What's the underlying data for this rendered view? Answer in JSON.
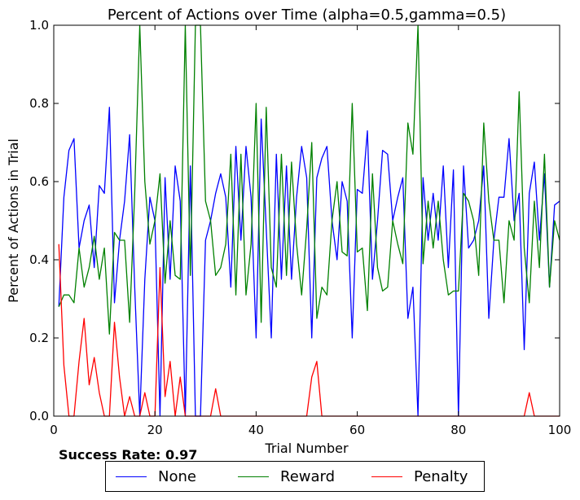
{
  "chart_data": {
    "type": "line",
    "title": "Percent of Actions over Time (alpha=0.5,gamma=0.5)",
    "xlabel": "Trial Number",
    "ylabel": "Percent of Actions in Trial",
    "xlim": [
      0,
      100
    ],
    "ylim": [
      0.0,
      1.0
    ],
    "xticks": [
      "0",
      "20",
      "40",
      "60",
      "80",
      "100"
    ],
    "yticks": [
      "0.0",
      "0.2",
      "0.4",
      "0.6",
      "0.8",
      "1.0"
    ],
    "grid": false,
    "legend_position": "below",
    "series": [
      {
        "name": "None",
        "color": "#0000ff",
        "x": [
          1,
          2,
          3,
          4,
          5,
          6,
          7,
          8,
          9,
          10,
          11,
          12,
          13,
          14,
          15,
          16,
          17,
          18,
          19,
          20,
          21,
          22,
          23,
          24,
          25,
          26,
          27,
          28,
          29,
          30,
          31,
          32,
          33,
          34,
          35,
          36,
          37,
          38,
          39,
          40,
          41,
          42,
          43,
          44,
          45,
          46,
          47,
          48,
          49,
          50,
          51,
          52,
          53,
          54,
          55,
          56,
          57,
          58,
          59,
          60,
          61,
          62,
          63,
          64,
          65,
          66,
          67,
          68,
          69,
          70,
          71,
          72,
          73,
          74,
          75,
          76,
          77,
          78,
          79,
          80,
          81,
          82,
          83,
          84,
          85,
          86,
          87,
          88,
          89,
          90,
          91,
          92,
          93,
          94,
          95,
          96,
          97,
          98,
          99,
          100
        ],
        "values": [
          0.28,
          0.56,
          0.68,
          0.71,
          0.43,
          0.5,
          0.54,
          0.38,
          0.59,
          0.57,
          0.79,
          0.29,
          0.45,
          0.55,
          0.72,
          0.33,
          0.0,
          0.35,
          0.56,
          0.5,
          0.0,
          0.61,
          0.35,
          0.64,
          0.55,
          0.0,
          0.64,
          0.0,
          0.0,
          0.45,
          0.5,
          0.57,
          0.62,
          0.56,
          0.33,
          0.69,
          0.45,
          0.69,
          0.56,
          0.2,
          0.76,
          0.48,
          0.2,
          0.67,
          0.35,
          0.64,
          0.35,
          0.56,
          0.69,
          0.61,
          0.2,
          0.61,
          0.66,
          0.69,
          0.5,
          0.4,
          0.6,
          0.55,
          0.2,
          0.58,
          0.57,
          0.73,
          0.35,
          0.5,
          0.68,
          0.67,
          0.5,
          0.56,
          0.61,
          0.25,
          0.33,
          0.0,
          0.61,
          0.45,
          0.57,
          0.45,
          0.64,
          0.38,
          0.63,
          0.0,
          0.64,
          0.43,
          0.45,
          0.5,
          0.64,
          0.25,
          0.45,
          0.56,
          0.56,
          0.71,
          0.5,
          0.57,
          0.17,
          0.57,
          0.65,
          0.45,
          0.62,
          0.33,
          0.54,
          0.55
        ]
      },
      {
        "name": "Reward",
        "color": "#008000",
        "x": [
          1,
          2,
          3,
          4,
          5,
          6,
          7,
          8,
          9,
          10,
          11,
          12,
          13,
          14,
          15,
          16,
          17,
          18,
          19,
          20,
          21,
          22,
          23,
          24,
          25,
          26,
          27,
          28,
          29,
          30,
          31,
          32,
          33,
          34,
          35,
          36,
          37,
          38,
          39,
          40,
          41,
          42,
          43,
          44,
          45,
          46,
          47,
          48,
          49,
          50,
          51,
          52,
          53,
          54,
          55,
          56,
          57,
          58,
          59,
          60,
          61,
          62,
          63,
          64,
          65,
          66,
          67,
          68,
          69,
          70,
          71,
          72,
          73,
          74,
          75,
          76,
          77,
          78,
          79,
          80,
          81,
          82,
          83,
          84,
          85,
          86,
          87,
          88,
          89,
          90,
          91,
          92,
          93,
          94,
          95,
          96,
          97,
          98,
          99,
          100
        ],
        "values": [
          0.28,
          0.31,
          0.31,
          0.29,
          0.43,
          0.33,
          0.38,
          0.46,
          0.35,
          0.43,
          0.21,
          0.47,
          0.45,
          0.45,
          0.24,
          0.57,
          1.0,
          0.6,
          0.44,
          0.5,
          0.62,
          0.34,
          0.5,
          0.36,
          0.35,
          1.0,
          0.36,
          1.0,
          1.0,
          0.55,
          0.5,
          0.36,
          0.38,
          0.44,
          0.67,
          0.31,
          0.67,
          0.31,
          0.44,
          0.8,
          0.24,
          0.79,
          0.38,
          0.33,
          0.67,
          0.36,
          0.65,
          0.44,
          0.31,
          0.48,
          0.7,
          0.25,
          0.33,
          0.31,
          0.5,
          0.6,
          0.42,
          0.41,
          0.8,
          0.42,
          0.43,
          0.27,
          0.62,
          0.38,
          0.32,
          0.33,
          0.5,
          0.44,
          0.39,
          0.75,
          0.67,
          1.0,
          0.39,
          0.55,
          0.43,
          0.55,
          0.4,
          0.31,
          0.32,
          0.32,
          0.57,
          0.55,
          0.5,
          0.36,
          0.75,
          0.55,
          0.45,
          0.45,
          0.29,
          0.5,
          0.45,
          0.83,
          0.43,
          0.29,
          0.55,
          0.38,
          0.67,
          0.33,
          0.5,
          0.45
        ]
      },
      {
        "name": "Penalty",
        "color": "#ff0000",
        "x": [
          1,
          2,
          3,
          4,
          5,
          6,
          7,
          8,
          9,
          10,
          11,
          12,
          13,
          14,
          15,
          16,
          17,
          18,
          19,
          20,
          21,
          22,
          23,
          24,
          25,
          26,
          27,
          28,
          29,
          30,
          31,
          32,
          33,
          34,
          35,
          36,
          37,
          38,
          39,
          40,
          41,
          42,
          43,
          44,
          45,
          46,
          47,
          48,
          49,
          50,
          51,
          52,
          53,
          54,
          55,
          56,
          57,
          58,
          59,
          60,
          61,
          62,
          63,
          64,
          65,
          66,
          67,
          68,
          69,
          70,
          71,
          72,
          73,
          74,
          75,
          76,
          77,
          78,
          79,
          80,
          81,
          82,
          83,
          84,
          85,
          86,
          87,
          88,
          89,
          90,
          91,
          92,
          93,
          94,
          95,
          96,
          97,
          98,
          99,
          100
        ],
        "values": [
          0.44,
          0.13,
          0.0,
          0.0,
          0.14,
          0.25,
          0.08,
          0.15,
          0.06,
          0.0,
          0.0,
          0.24,
          0.1,
          0.0,
          0.05,
          0.0,
          0.0,
          0.06,
          0.0,
          0.0,
          0.38,
          0.05,
          0.14,
          0.0,
          0.1,
          0.0,
          0.0,
          0.0,
          0.0,
          0.0,
          0.0,
          0.07,
          0.0,
          0.0,
          0.0,
          0.0,
          0.0,
          0.0,
          0.0,
          0.0,
          0.0,
          0.0,
          0.0,
          0.0,
          0.0,
          0.0,
          0.0,
          0.0,
          0.0,
          0.0,
          0.1,
          0.14,
          0.0,
          0.0,
          0.0,
          0.0,
          0.0,
          0.0,
          0.0,
          0.0,
          0.0,
          0.0,
          0.0,
          0.0,
          0.0,
          0.0,
          0.0,
          0.0,
          0.0,
          0.0,
          0.0,
          0.0,
          0.0,
          0.0,
          0.0,
          0.0,
          0.0,
          0.0,
          0.0,
          0.0,
          0.0,
          0.0,
          0.0,
          0.0,
          0.0,
          0.0,
          0.0,
          0.0,
          0.0,
          0.0,
          0.0,
          0.0,
          0.0,
          0.06,
          0.0,
          0.0,
          0.0,
          0.0,
          0.0,
          0.0
        ]
      }
    ]
  },
  "success_rate_text": "Success Rate: 0.97"
}
